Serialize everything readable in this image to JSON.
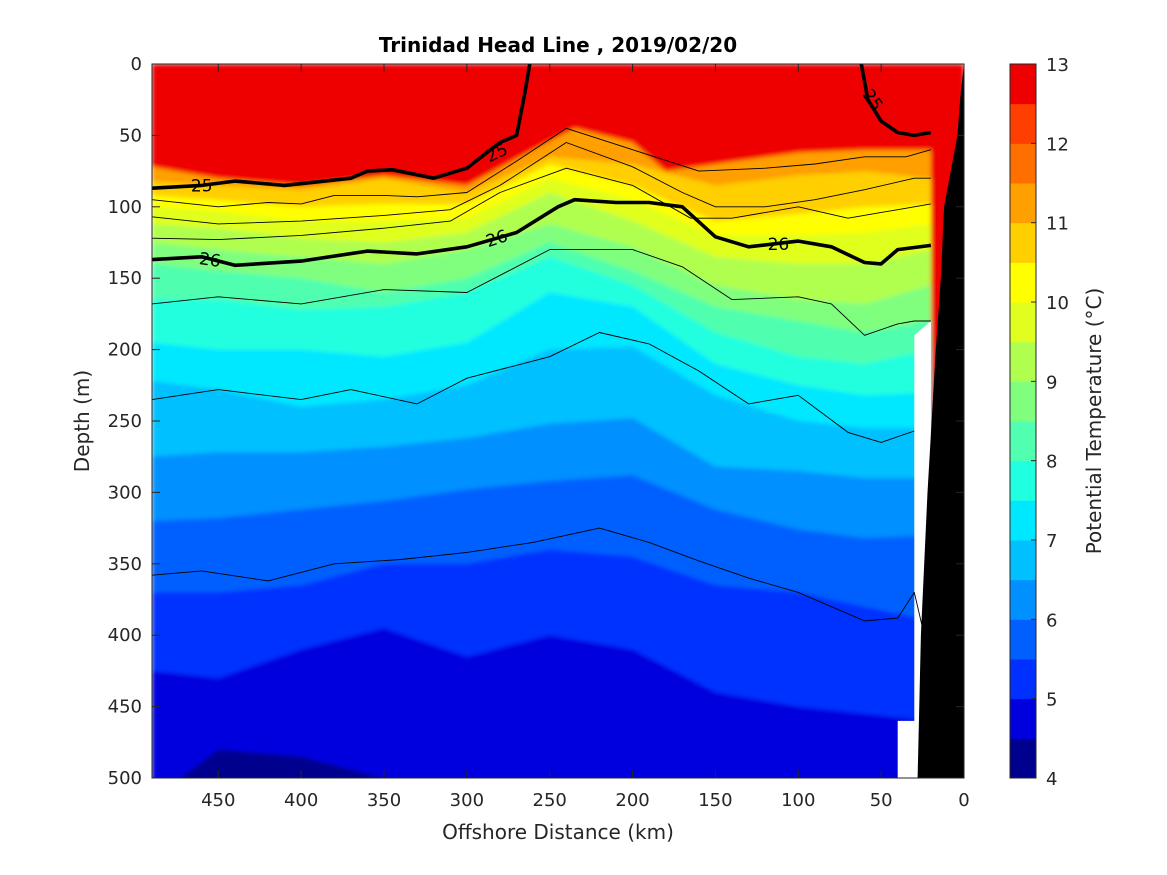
{
  "chart_data": {
    "type": "contourf",
    "title": "Trinidad Head Line , 2019/02/20",
    "xlabel": "Offshore Distance (km)",
    "ylabel": "Depth (m)",
    "colorbar_label": "Potential Temperature (°C)",
    "xlim": [
      490,
      0
    ],
    "ylim": [
      0,
      500
    ],
    "x_reversed": true,
    "y_reversed": true,
    "x_ticks": [
      "450",
      "400",
      "350",
      "300",
      "250",
      "200",
      "150",
      "100",
      "50",
      "0"
    ],
    "y_ticks": [
      "0",
      "50",
      "100",
      "150",
      "200",
      "250",
      "300",
      "350",
      "400",
      "450",
      "500"
    ],
    "colorbar_ticks": [
      "13",
      "12",
      "11",
      "10",
      "9",
      "8",
      "7",
      "6",
      "5",
      "4"
    ],
    "colorbar_range": [
      4,
      13
    ],
    "levels": [
      4,
      4.5,
      5,
      5.5,
      6,
      6.5,
      7,
      7.5,
      8,
      8.5,
      9,
      9.5,
      10,
      10.5,
      11,
      11.5,
      12,
      12.5,
      13
    ],
    "level_colors": [
      "#00008f",
      "#0000df",
      "#0030ff",
      "#0060ff",
      "#0090ff",
      "#00c0ff",
      "#00e8ff",
      "#20ffdf",
      "#50ffaf",
      "#80ff7f",
      "#b0ff4f",
      "#e0ff1f",
      "#ffff00",
      "#ffcf00",
      "#ff9f00",
      "#ff6f00",
      "#ff3f00",
      "#ef0000",
      "#af0000"
    ],
    "temperature_isotherms": [
      {
        "temp": 11.5,
        "x": [
          490,
          450,
          400,
          350,
          300,
          260,
          235,
          200,
          180,
          150,
          100,
          60,
          20
        ],
        "depth": [
          72,
          80,
          85,
          78,
          85,
          60,
          45,
          55,
          75,
          70,
          62,
          60,
          60
        ]
      },
      {
        "temp": 11.0,
        "x": [
          490,
          450,
          400,
          350,
          300,
          250,
          200,
          150,
          100,
          60,
          20
        ],
        "depth": [
          82,
          85,
          88,
          80,
          90,
          65,
          70,
          85,
          78,
          75,
          80
        ]
      },
      {
        "temp": 10.5,
        "x": [
          490,
          450,
          400,
          350,
          300,
          250,
          200,
          150,
          100,
          60,
          20
        ],
        "depth": [
          92,
          95,
          100,
          98,
          98,
          70,
          85,
          110,
          105,
          100,
          98
        ]
      },
      {
        "temp": 10.0,
        "x": [
          490,
          450,
          400,
          350,
          300,
          250,
          200,
          150,
          100,
          60,
          20
        ],
        "depth": [
          100,
          103,
          110,
          110,
          108,
          80,
          95,
          120,
          120,
          118,
          112
        ]
      },
      {
        "temp": 9.5,
        "x": [
          490,
          450,
          400,
          350,
          300,
          250,
          200,
          150,
          100,
          60,
          20
        ],
        "depth": [
          112,
          115,
          122,
          125,
          118,
          90,
          110,
          135,
          140,
          140,
          130
        ]
      },
      {
        "temp": 9.0,
        "x": [
          490,
          450,
          400,
          350,
          300,
          250,
          200,
          150,
          100,
          60,
          20
        ],
        "depth": [
          125,
          130,
          135,
          140,
          130,
          112,
          128,
          155,
          165,
          168,
          155
        ]
      },
      {
        "temp": 8.5,
        "x": [
          490,
          450,
          400,
          350,
          300,
          250,
          200,
          150,
          100,
          60,
          20
        ],
        "depth": [
          140,
          145,
          150,
          160,
          150,
          125,
          145,
          170,
          180,
          188,
          180
        ]
      },
      {
        "temp": 8.0,
        "x": [
          490,
          450,
          400,
          350,
          300,
          250,
          200,
          150,
          100,
          60,
          20
        ],
        "depth": [
          165,
          165,
          172,
          170,
          160,
          135,
          155,
          188,
          205,
          210,
          200
        ]
      },
      {
        "temp": 7.5,
        "x": [
          490,
          450,
          400,
          350,
          300,
          250,
          200,
          150,
          100,
          60,
          20
        ],
        "depth": [
          195,
          200,
          200,
          205,
          195,
          160,
          170,
          210,
          225,
          232,
          230
        ]
      },
      {
        "temp": 7.0,
        "x": [
          490,
          450,
          400,
          350,
          300,
          250,
          200,
          150,
          100,
          60,
          20
        ],
        "depth": [
          222,
          228,
          240,
          235,
          225,
          200,
          198,
          232,
          250,
          255,
          255
        ]
      },
      {
        "temp": 6.5,
        "x": [
          490,
          450,
          400,
          350,
          300,
          250,
          200,
          150,
          100,
          60,
          20
        ],
        "depth": [
          275,
          272,
          272,
          268,
          262,
          252,
          248,
          282,
          285,
          290,
          290
        ]
      },
      {
        "temp": 6.0,
        "x": [
          490,
          450,
          400,
          350,
          300,
          250,
          200,
          150,
          100,
          60,
          20
        ],
        "depth": [
          320,
          318,
          312,
          306,
          298,
          292,
          288,
          312,
          326,
          332,
          330
        ]
      },
      {
        "temp": 5.5,
        "x": [
          490,
          450,
          400,
          350,
          300,
          250,
          200,
          150,
          100,
          60,
          20
        ],
        "depth": [
          370,
          370,
          365,
          350,
          350,
          340,
          345,
          365,
          370,
          380,
          390
        ]
      },
      {
        "temp": 5.0,
        "x": [
          490,
          450,
          400,
          350,
          300,
          250,
          200,
          150,
          100,
          60,
          20
        ],
        "depth": [
          425,
          430,
          410,
          395,
          415,
          400,
          410,
          440,
          450,
          455,
          460
        ]
      },
      {
        "temp": 4.5,
        "x": [
          490,
          450,
          400,
          350,
          300,
          250,
          200,
          150,
          100,
          60,
          20
        ],
        "depth": [
          515,
          480,
          485,
          500,
          515,
          520,
          520,
          515,
          510,
          505,
          510
        ]
      }
    ],
    "density_isopycnals": [
      {
        "label": "25",
        "bold": true,
        "x": [
          490,
          460,
          440,
          410,
          370,
          360,
          345,
          320,
          300,
          280,
          270,
          265,
          262
        ],
        "depth": [
          87,
          85,
          82,
          85,
          80,
          75,
          74,
          80,
          73,
          55,
          50,
          20,
          0
        ]
      },
      {
        "label": "25",
        "bold": true,
        "x": [
          62,
          58,
          50,
          40,
          30,
          20
        ],
        "depth": [
          0,
          25,
          40,
          48,
          50,
          48
        ]
      },
      {
        "label": "26",
        "bold": true,
        "x": [
          490,
          460,
          440,
          400,
          360,
          330,
          300,
          270,
          245,
          235,
          210,
          190,
          170,
          150,
          130,
          100,
          80,
          60,
          50,
          40,
          20
        ],
        "depth": [
          137,
          135,
          141,
          138,
          131,
          133,
          128,
          118,
          100,
          95,
          97,
          97,
          100,
          121,
          128,
          124,
          128,
          139,
          140,
          130,
          127
        ]
      },
      {
        "label": "",
        "bold": false,
        "x": [
          490,
          450,
          420,
          400,
          380,
          350,
          330,
          300,
          270,
          240,
          200,
          160,
          120,
          90,
          60,
          35,
          20
        ],
        "depth": [
          95,
          100,
          97,
          98,
          92,
          92,
          93,
          90,
          68,
          45,
          60,
          75,
          73,
          70,
          65,
          65,
          60
        ]
      },
      {
        "label": "",
        "bold": false,
        "x": [
          490,
          450,
          400,
          350,
          310,
          280,
          240,
          200,
          170,
          150,
          120,
          90,
          60,
          30,
          20
        ],
        "depth": [
          107,
          112,
          110,
          106,
          102,
          85,
          55,
          72,
          90,
          100,
          100,
          95,
          88,
          80,
          80
        ]
      },
      {
        "label": "",
        "bold": false,
        "x": [
          490,
          450,
          400,
          350,
          310,
          280,
          240,
          200,
          165,
          140,
          100,
          70,
          30,
          20
        ],
        "depth": [
          122,
          123,
          120,
          115,
          110,
          90,
          73,
          85,
          108,
          108,
          100,
          108,
          100,
          98
        ]
      },
      {
        "label": "",
        "bold": false,
        "x": [
          490,
          450,
          400,
          350,
          300,
          250,
          200,
          170,
          140,
          100,
          80,
          60,
          40,
          30,
          20
        ],
        "depth": [
          168,
          163,
          168,
          158,
          160,
          130,
          130,
          142,
          165,
          163,
          168,
          190,
          182,
          180,
          180
        ]
      },
      {
        "label": "",
        "bold": false,
        "x": [
          490,
          450,
          400,
          370,
          330,
          300,
          250,
          220,
          190,
          160,
          130,
          100,
          70,
          50,
          30
        ],
        "depth": [
          235,
          228,
          235,
          228,
          238,
          220,
          205,
          188,
          196,
          215,
          238,
          232,
          258,
          265,
          257
        ]
      },
      {
        "label": "",
        "bold": false,
        "x": [
          490,
          460,
          420,
          380,
          340,
          300,
          260,
          220,
          190,
          160,
          130,
          100,
          60,
          40,
          30,
          25
        ],
        "depth": [
          358,
          355,
          362,
          350,
          347,
          342,
          335,
          325,
          335,
          348,
          360,
          370,
          390,
          388,
          370,
          395
        ]
      }
    ],
    "contour_labels": [
      {
        "text": "25",
        "x": 282,
        "depth": 62,
        "angle": -25
      },
      {
        "text": "25",
        "x": 460,
        "depth": 85,
        "angle": 0
      },
      {
        "text": "25",
        "x": 55,
        "depth": 25,
        "angle": 55
      },
      {
        "text": "26",
        "x": 282,
        "depth": 122,
        "angle": -18
      },
      {
        "text": "26",
        "x": 455,
        "depth": 137,
        "angle": 8
      },
      {
        "text": "26",
        "x": 112,
        "depth": 126,
        "angle": 0
      }
    ],
    "no_data_region": {
      "x": [
        20,
        20,
        30,
        30,
        40,
        40,
        20
      ],
      "depth": [
        0,
        180,
        190,
        460,
        460,
        500,
        500
      ]
    },
    "seafloor": {
      "x": [
        28,
        26,
        22,
        17,
        14,
        12,
        4,
        2,
        0,
        0,
        28
      ],
      "depth": [
        500,
        400,
        300,
        200,
        150,
        100,
        50,
        20,
        0,
        500,
        500
      ]
    }
  }
}
